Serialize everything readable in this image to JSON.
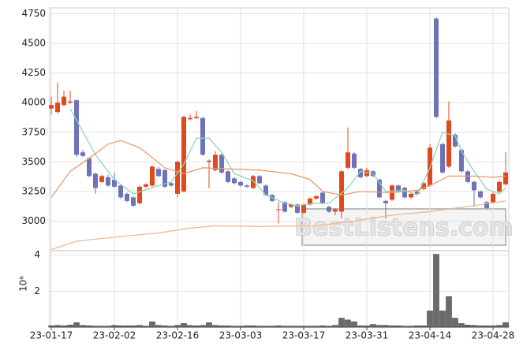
{
  "chart_data": {
    "type": "candlestick",
    "categories": [
      "23-01-17",
      null,
      null,
      null,
      null,
      null,
      null,
      null,
      null,
      null,
      "23-02-02",
      null,
      null,
      null,
      null,
      null,
      null,
      null,
      null,
      null,
      "23-02-16",
      null,
      null,
      null,
      null,
      null,
      null,
      null,
      null,
      null,
      "23-03-03",
      null,
      null,
      null,
      null,
      null,
      null,
      null,
      null,
      null,
      "23-03-17",
      null,
      null,
      null,
      null,
      null,
      null,
      null,
      null,
      null,
      "23-03-31",
      null,
      null,
      null,
      null,
      null,
      null,
      null,
      null,
      null,
      "23-04-14",
      null,
      null,
      null,
      null,
      null,
      null,
      null,
      null,
      null,
      "23-04-28",
      null,
      null
    ],
    "open": [
      3950,
      3920,
      3980,
      4000,
      4020,
      3580,
      3530,
      3400,
      3330,
      3370,
      3350,
      3300,
      3230,
      3200,
      3150,
      3290,
      3300,
      3440,
      3430,
      3320,
      3230,
      3250,
      3860,
      3870,
      3870,
      3500,
      3430,
      3560,
      3420,
      3360,
      3330,
      3300,
      3280,
      3380,
      3300,
      3220,
      3100,
      3160,
      3120,
      3140,
      3070,
      3140,
      3190,
      3240,
      3120,
      3080,
      3080,
      3450,
      3570,
      3440,
      3380,
      3420,
      3350,
      3170,
      3180,
      3300,
      3280,
      3200,
      3250,
      3270,
      3300,
      4710,
      3650,
      3460,
      3730,
      3600,
      3420,
      3330,
      3250,
      3160,
      3160,
      3250,
      3310
    ],
    "high": [
      4050,
      4170,
      4100,
      4100,
      4030,
      3600,
      3540,
      3410,
      3390,
      3390,
      3410,
      3310,
      3240,
      3210,
      3300,
      3320,
      3470,
      3460,
      3440,
      3330,
      3510,
      3890,
      3900,
      3930,
      3880,
      3520,
      3590,
      3570,
      3430,
      3370,
      3340,
      3310,
      3390,
      3390,
      3310,
      3230,
      3160,
      3170,
      3150,
      3150,
      3150,
      3200,
      3220,
      3250,
      3130,
      3110,
      3430,
      3790,
      3580,
      3450,
      3450,
      3430,
      3360,
      3180,
      3310,
      3310,
      3290,
      3240,
      3260,
      3330,
      3650,
      4720,
      3660,
      4010,
      3740,
      3610,
      3430,
      3340,
      3260,
      3170,
      3240,
      3340,
      3580
    ],
    "low": [
      3900,
      3910,
      3970,
      3990,
      3540,
      3540,
      3370,
      3230,
      3320,
      3290,
      3280,
      3190,
      3160,
      3120,
      3140,
      3280,
      3290,
      3370,
      3280,
      3290,
      3200,
      3240,
      3850,
      3860,
      3550,
      3280,
      3420,
      3400,
      3320,
      3310,
      3290,
      3280,
      3270,
      3310,
      3210,
      3160,
      2980,
      3070,
      3110,
      3060,
      3060,
      3130,
      3180,
      3140,
      3070,
      3050,
      3020,
      3440,
      3440,
      3360,
      3370,
      3370,
      3190,
      3020,
      3170,
      3240,
      3190,
      3190,
      3220,
      3260,
      3290,
      3870,
      3400,
      3450,
      3620,
      3410,
      3320,
      3120,
      3190,
      3100,
      3150,
      3240,
      3300
    ],
    "close": [
      3980,
      4000,
      4050,
      4010,
      3560,
      3550,
      3380,
      3280,
      3380,
      3300,
      3290,
      3200,
      3170,
      3130,
      3290,
      3310,
      3460,
      3380,
      3290,
      3300,
      3500,
      3880,
      3870,
      3880,
      3560,
      3510,
      3560,
      3410,
      3330,
      3320,
      3300,
      3290,
      3380,
      3320,
      3220,
      3170,
      3100,
      3080,
      3140,
      3070,
      3140,
      3190,
      3210,
      3150,
      3080,
      3100,
      3420,
      3580,
      3450,
      3370,
      3430,
      3380,
      3200,
      3150,
      3300,
      3250,
      3200,
      3230,
      3230,
      3320,
      3620,
      3880,
      3410,
      3850,
      3630,
      3420,
      3330,
      3260,
      3200,
      3110,
      3230,
      3330,
      3410
    ],
    "up_color": "#e2481c",
    "down_color": "#6e72b8",
    "volume": [
      0.08,
      0.1,
      0.08,
      0.12,
      0.25,
      0.1,
      0.08,
      0.06,
      0.06,
      0.06,
      0.1,
      0.08,
      0.08,
      0.08,
      0.1,
      0.06,
      0.3,
      0.1,
      0.08,
      0.06,
      0.1,
      0.2,
      0.1,
      0.08,
      0.1,
      0.25,
      0.1,
      0.08,
      0.08,
      0.06,
      0.06,
      0.08,
      0.08,
      0.06,
      0.06,
      0.06,
      0.08,
      0.06,
      0.06,
      0.06,
      0.06,
      0.06,
      0.06,
      0.08,
      0.06,
      0.1,
      0.5,
      0.4,
      0.3,
      0.08,
      0.08,
      0.15,
      0.1,
      0.1,
      0.08,
      0.08,
      0.06,
      0.06,
      0.08,
      0.08,
      0.9,
      4.05,
      0.9,
      1.7,
      0.5,
      0.2,
      0.12,
      0.1,
      0.08,
      0.08,
      0.08,
      0.1,
      0.25
    ],
    "volume_color": "#6b6b6b",
    "volume_label": "10⁶",
    "ylim": [
      2750,
      4800
    ],
    "yticks": [
      3000,
      3250,
      3500,
      3750,
      4000,
      4250,
      4500,
      4750
    ],
    "volume_ylim": [
      0,
      4.25
    ],
    "volume_yticks": [
      2,
      4
    ],
    "moving_averages": [
      {
        "color": "#8fd6b4",
        "x": [
          3,
          7,
          10,
          13,
          17,
          19,
          21,
          23,
          25,
          27,
          29,
          32,
          34,
          37,
          39,
          42,
          44,
          47,
          49,
          51,
          53,
          56,
          58,
          60,
          62,
          64,
          65,
          67,
          69,
          71,
          72
        ],
        "values": [
          3950,
          3560,
          3350,
          3230,
          3300,
          3330,
          3480,
          3700,
          3700,
          3580,
          3400,
          3340,
          3220,
          3150,
          3130,
          3150,
          3150,
          3280,
          3420,
          3400,
          3250,
          3260,
          3220,
          3450,
          3750,
          3720,
          3590,
          3420,
          3270,
          3230,
          3280
        ]
      },
      {
        "color": "#ee9a6a",
        "x": [
          0,
          3,
          6,
          9,
          11,
          14,
          18,
          21,
          24,
          28,
          33,
          38,
          41,
          43,
          46,
          49,
          54,
          58,
          60,
          63,
          67,
          70,
          72
        ],
        "values": [
          3200,
          3420,
          3530,
          3650,
          3680,
          3620,
          3450,
          3400,
          3450,
          3440,
          3430,
          3400,
          3350,
          3250,
          3220,
          3250,
          3240,
          3260,
          3300,
          3380,
          3380,
          3370,
          3380
        ]
      },
      {
        "color": "#f0b890",
        "x": [
          0,
          4,
          11,
          17,
          22,
          26,
          33,
          42,
          48,
          54,
          60,
          67,
          72
        ],
        "values": [
          2760,
          2830,
          2870,
          2900,
          2940,
          2960,
          2955,
          2960,
          3000,
          3050,
          3080,
          3130,
          3170
        ]
      }
    ],
    "grid": true,
    "watermark": "BestListens.com"
  }
}
